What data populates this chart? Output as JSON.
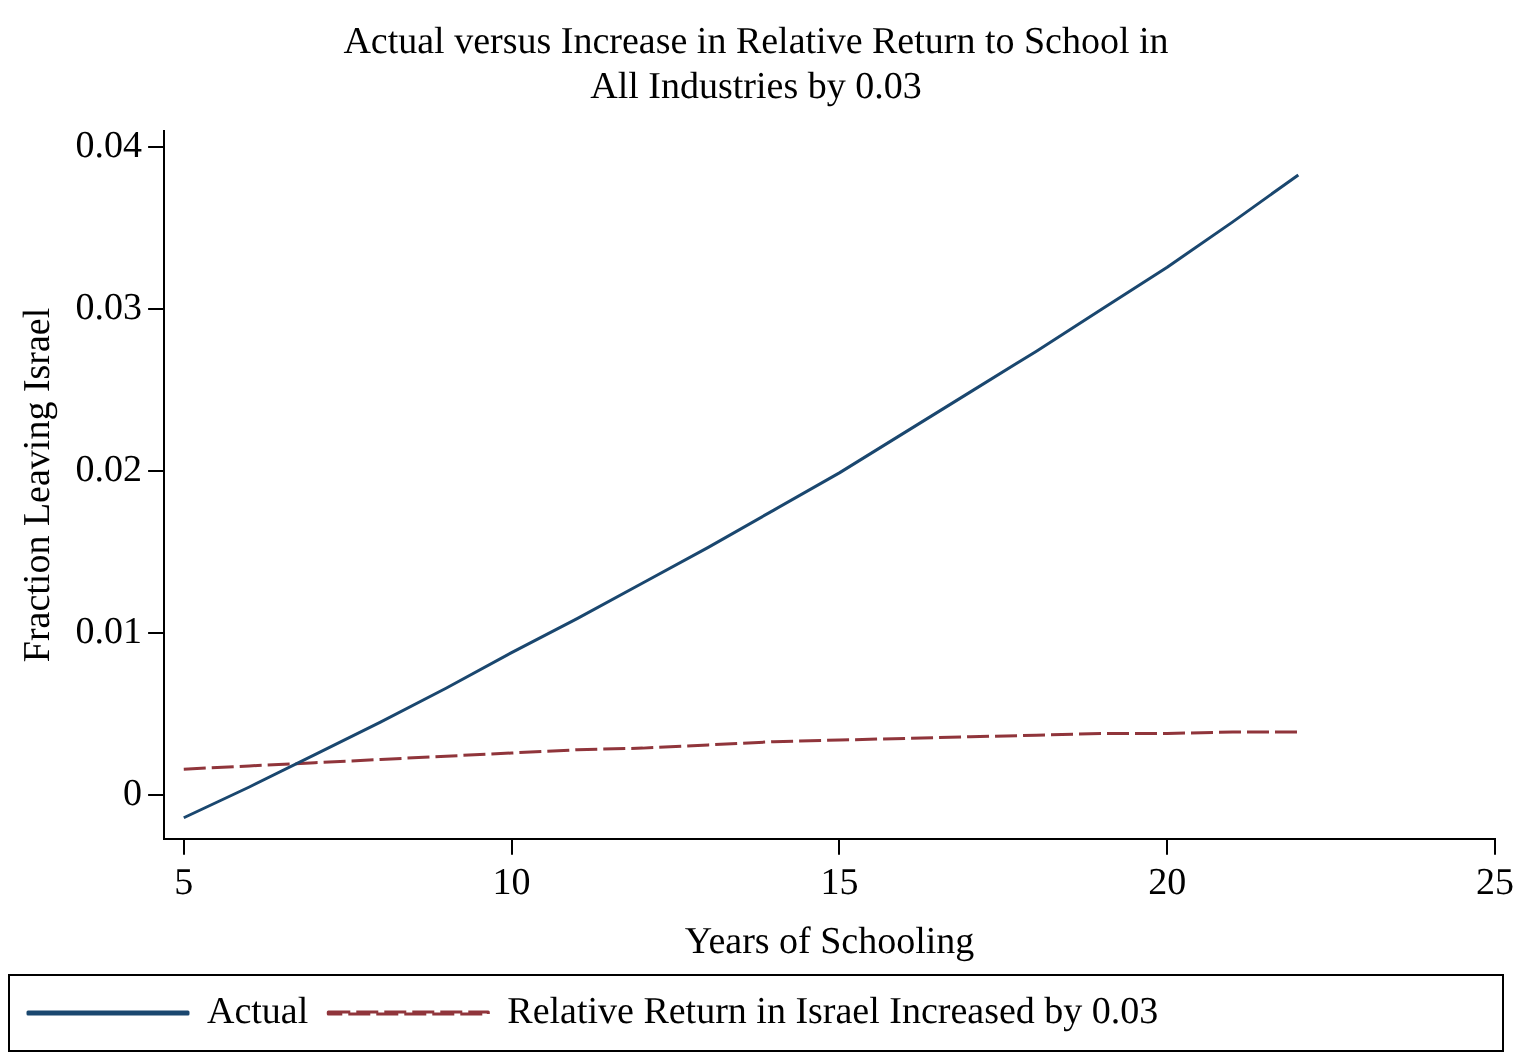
{
  "chart_data": {
    "type": "line",
    "title": "Actual versus Increase in Relative Return to School in All Industries by 0.03",
    "xlabel": "Years of Schooling",
    "ylabel": "Fraction Leaving Israel",
    "x": [
      5,
      6,
      7,
      8,
      9,
      10,
      11,
      12,
      13,
      14,
      15,
      16,
      17,
      18,
      19,
      20,
      21,
      22
    ],
    "series": [
      {
        "name": "Actual",
        "color": "#1a476f",
        "line_style": "solid",
        "values": [
          -0.0014,
          0.0005,
          0.0025,
          0.0045,
          0.0066,
          0.0088,
          0.0109,
          0.0131,
          0.0153,
          0.0176,
          0.0199,
          0.0224,
          0.0249,
          0.0274,
          0.03,
          0.0326,
          0.0354,
          0.0383
        ]
      },
      {
        "name": "Relative Return in Israel Increased by 0.03",
        "color": "#90353b",
        "line_style": "dashed",
        "values": [
          0.0016,
          0.0018,
          0.002,
          0.0022,
          0.0024,
          0.0026,
          0.0028,
          0.0029,
          0.0031,
          0.0033,
          0.0034,
          0.0035,
          0.0036,
          0.0037,
          0.0038,
          0.0038,
          0.0039,
          0.0039
        ]
      }
    ],
    "xlim": [
      4.7,
      25
    ],
    "xticks": [
      5,
      10,
      15,
      20,
      25
    ],
    "ylim": [
      -0.0027,
      0.041
    ],
    "yticks": [
      0,
      0.01,
      0.02,
      0.03,
      0.04
    ],
    "grid": false,
    "legend": "bottom",
    "marker": "none"
  }
}
